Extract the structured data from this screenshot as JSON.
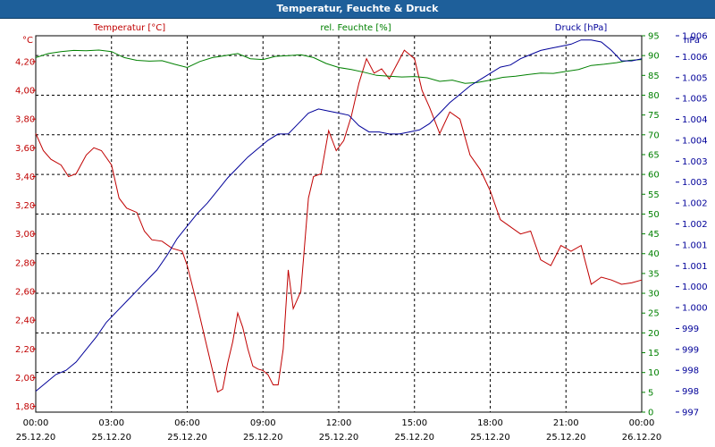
{
  "window": {
    "title": "Temperatur, Feuchte & Druck"
  },
  "colors": {
    "temperature": "#c00000",
    "humidity": "#008000",
    "pressure": "#000099",
    "grid": "#000000",
    "titlebar": "#1e5f9a"
  },
  "chart_data": {
    "type": "line",
    "title": "Temperatur, Feuchte & Druck",
    "x_ticks": [
      {
        "time": "00:00",
        "date": "25.12.20"
      },
      {
        "time": "03:00",
        "date": "25.12.20"
      },
      {
        "time": "06:00",
        "date": "25.12.20"
      },
      {
        "time": "09:00",
        "date": "25.12.20"
      },
      {
        "time": "12:00",
        "date": "25.12.20"
      },
      {
        "time": "15:00",
        "date": "25.12.20"
      },
      {
        "time": "18:00",
        "date": "25.12.20"
      },
      {
        "time": "21:00",
        "date": "25.12.20"
      },
      {
        "time": "00:00",
        "date": "26.12.20"
      }
    ],
    "xlim": [
      0,
      24
    ],
    "axes": {
      "temperature": {
        "unit": "°C",
        "label": "Temperatur [°C]",
        "ylim": [
          1.76,
          4.38
        ],
        "ticks": [
          "1,80",
          "2,00",
          "2,20",
          "2,40",
          "2,60",
          "2,80",
          "3,00",
          "3,20",
          "3,40",
          "3,60",
          "3,80",
          "4,00",
          "4,20"
        ]
      },
      "humidity": {
        "unit": "%",
        "label": "rel. Feuchte [%]",
        "ylim": [
          0,
          95
        ],
        "ticks": [
          "0",
          "5",
          "10",
          "15",
          "20",
          "25",
          "30",
          "35",
          "40",
          "45",
          "50",
          "55",
          "60",
          "65",
          "70",
          "75",
          "80",
          "85",
          "90",
          "95"
        ]
      },
      "pressure": {
        "unit": "hPa",
        "label": "Druck [hPa]",
        "ylim": [
          0,
          18
        ],
        "ticks": [
          "997",
          "998",
          "998",
          "999",
          "999",
          "1.000",
          "1.000",
          "1.001",
          "1.001",
          "1.002",
          "1.002",
          "1.003",
          "1.003",
          "1.004",
          "1.004",
          "1.005",
          "1.005",
          "1.006",
          "1.006"
        ]
      }
    },
    "series": [
      {
        "name": "Temperatur [°C]",
        "axis": "temperature",
        "x": [
          0,
          0.3,
          0.6,
          1.0,
          1.3,
          1.6,
          2.0,
          2.3,
          2.6,
          3.0,
          3.3,
          3.6,
          4.0,
          4.3,
          4.6,
          5.0,
          5.4,
          5.8,
          6.0,
          6.4,
          6.8,
          7.0,
          7.2,
          7.4,
          7.6,
          7.8,
          8.0,
          8.2,
          8.4,
          8.6,
          8.8,
          9.0,
          9.2,
          9.4,
          9.6,
          9.8,
          10.0,
          10.2,
          10.5,
          10.8,
          11.0,
          11.3,
          11.6,
          11.9,
          12.2,
          12.5,
          12.8,
          13.1,
          13.4,
          13.7,
          14.0,
          14.3,
          14.6,
          15.0,
          15.3,
          15.6,
          16.0,
          16.4,
          16.8,
          17.2,
          17.6,
          18.0,
          18.4,
          18.8,
          19.2,
          19.6,
          20.0,
          20.4,
          20.8,
          21.2,
          21.6,
          22.0,
          22.4,
          22.8,
          23.2,
          23.6,
          24.0
        ],
        "values": [
          3.7,
          3.58,
          3.52,
          3.48,
          3.4,
          3.42,
          3.55,
          3.6,
          3.58,
          3.48,
          3.25,
          3.18,
          3.15,
          3.02,
          2.96,
          2.95,
          2.9,
          2.88,
          2.78,
          2.5,
          2.2,
          2.05,
          1.9,
          1.92,
          2.1,
          2.25,
          2.45,
          2.35,
          2.2,
          2.08,
          2.06,
          2.05,
          2.02,
          1.95,
          1.95,
          2.2,
          2.75,
          2.48,
          2.6,
          3.25,
          3.4,
          3.42,
          3.72,
          3.58,
          3.65,
          3.82,
          4.05,
          4.22,
          4.12,
          4.15,
          4.08,
          4.18,
          4.28,
          4.22,
          4.0,
          3.88,
          3.7,
          3.85,
          3.8,
          3.55,
          3.45,
          3.3,
          3.1,
          3.05,
          3.0,
          3.02,
          2.82,
          2.78,
          2.92,
          2.88,
          2.92,
          2.65,
          2.7,
          2.68,
          2.65,
          2.66,
          2.68
        ]
      },
      {
        "name": "rel. Feuchte [%]",
        "axis": "humidity",
        "x": [
          0,
          0.5,
          1.0,
          1.5,
          2.0,
          2.5,
          3.0,
          3.5,
          4.0,
          4.5,
          5.0,
          5.5,
          6.0,
          6.5,
          7.0,
          7.5,
          8.0,
          8.5,
          9.0,
          9.5,
          10.0,
          10.5,
          11.0,
          11.5,
          12.0,
          12.5,
          13.0,
          13.5,
          14.0,
          14.5,
          15.0,
          15.5,
          16.0,
          16.5,
          17.0,
          17.5,
          18.0,
          18.5,
          19.0,
          19.5,
          20.0,
          20.5,
          21.0,
          21.5,
          22.0,
          22.5,
          23.0,
          23.5,
          24.0
        ],
        "values": [
          89.5,
          90.5,
          91.0,
          91.3,
          91.2,
          91.4,
          91.0,
          89.5,
          88.8,
          88.6,
          88.7,
          87.8,
          87.0,
          88.5,
          89.5,
          90.0,
          90.5,
          89.2,
          89.0,
          89.8,
          90.0,
          90.2,
          89.5,
          88.0,
          87.0,
          86.5,
          85.8,
          85.0,
          84.8,
          84.6,
          84.7,
          84.4,
          83.5,
          83.8,
          83.0,
          83.2,
          83.8,
          84.5,
          84.8,
          85.2,
          85.6,
          85.5,
          86.0,
          86.5,
          87.5,
          87.8,
          88.2,
          88.8,
          89.0
        ]
      },
      {
        "name": "Druck [hPa]",
        "axis": "pressure",
        "x": [
          0,
          0.4,
          0.8,
          1.2,
          1.6,
          2.0,
          2.4,
          2.8,
          3.2,
          3.6,
          4.0,
          4.4,
          4.8,
          5.2,
          5.6,
          6.0,
          6.4,
          6.8,
          7.2,
          7.6,
          8.0,
          8.4,
          8.8,
          9.2,
          9.6,
          10.0,
          10.4,
          10.8,
          11.2,
          11.6,
          12.0,
          12.4,
          12.8,
          13.2,
          13.6,
          14.0,
          14.4,
          14.8,
          15.2,
          15.6,
          16.0,
          16.4,
          16.8,
          17.2,
          17.6,
          18.0,
          18.4,
          18.8,
          19.2,
          19.6,
          20.0,
          20.4,
          20.8,
          21.2,
          21.6,
          22.0,
          22.4,
          22.8,
          23.2,
          23.6,
          24.0
        ],
        "values": [
          1.0,
          1.4,
          1.8,
          2.0,
          2.4,
          3.0,
          3.6,
          4.3,
          4.8,
          5.3,
          5.8,
          6.3,
          6.8,
          7.5,
          8.3,
          8.9,
          9.5,
          10.0,
          10.6,
          11.2,
          11.7,
          12.2,
          12.6,
          13.0,
          13.3,
          13.3,
          13.8,
          14.3,
          14.5,
          14.4,
          14.3,
          14.2,
          13.7,
          13.4,
          13.4,
          13.3,
          13.3,
          13.4,
          13.5,
          13.8,
          14.3,
          14.8,
          15.2,
          15.6,
          15.9,
          16.2,
          16.5,
          16.6,
          16.9,
          17.1,
          17.3,
          17.4,
          17.5,
          17.6,
          17.8,
          17.8,
          17.7,
          17.3,
          16.8,
          16.8,
          16.9
        ]
      }
    ]
  }
}
